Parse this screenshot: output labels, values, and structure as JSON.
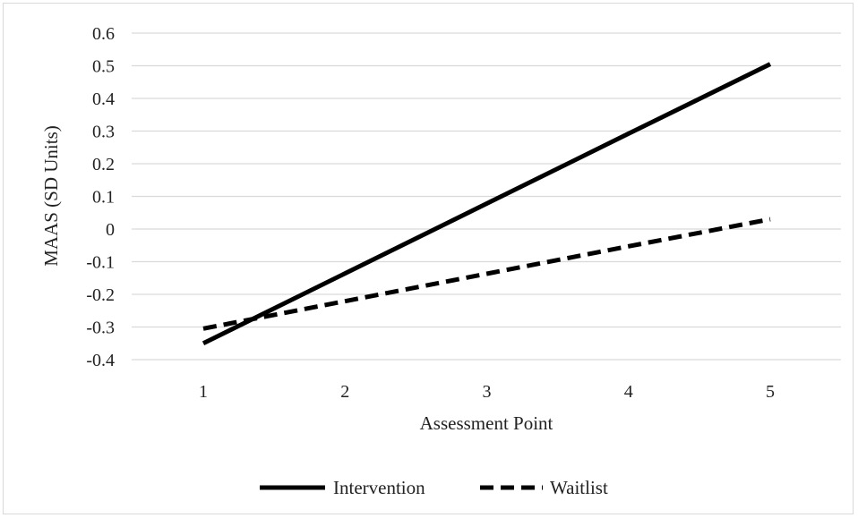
{
  "chart_data": {
    "type": "line",
    "title": "",
    "xlabel": "Assessment Point",
    "ylabel": "MAAS (SD Units)",
    "ylim": [
      -0.4,
      0.6
    ],
    "y_ticks": [
      "0.6",
      "0.5",
      "0.4",
      "0.3",
      "0.2",
      "0.1",
      "0",
      "-0.1",
      "-0.2",
      "-0.3",
      "-0.4"
    ],
    "categories": [
      "1",
      "2",
      "3",
      "4",
      "5"
    ],
    "grid": "horizontal",
    "legend_position": "bottom",
    "series": [
      {
        "name": "Intervention",
        "style": "solid",
        "color": "#000000",
        "values": [
          -0.35,
          -0.136,
          0.078,
          0.292,
          0.505
        ]
      },
      {
        "name": "Waitlist",
        "style": "dashed",
        "color": "#000000",
        "values": [
          -0.305,
          -0.221,
          -0.137,
          -0.053,
          0.03
        ]
      }
    ]
  }
}
